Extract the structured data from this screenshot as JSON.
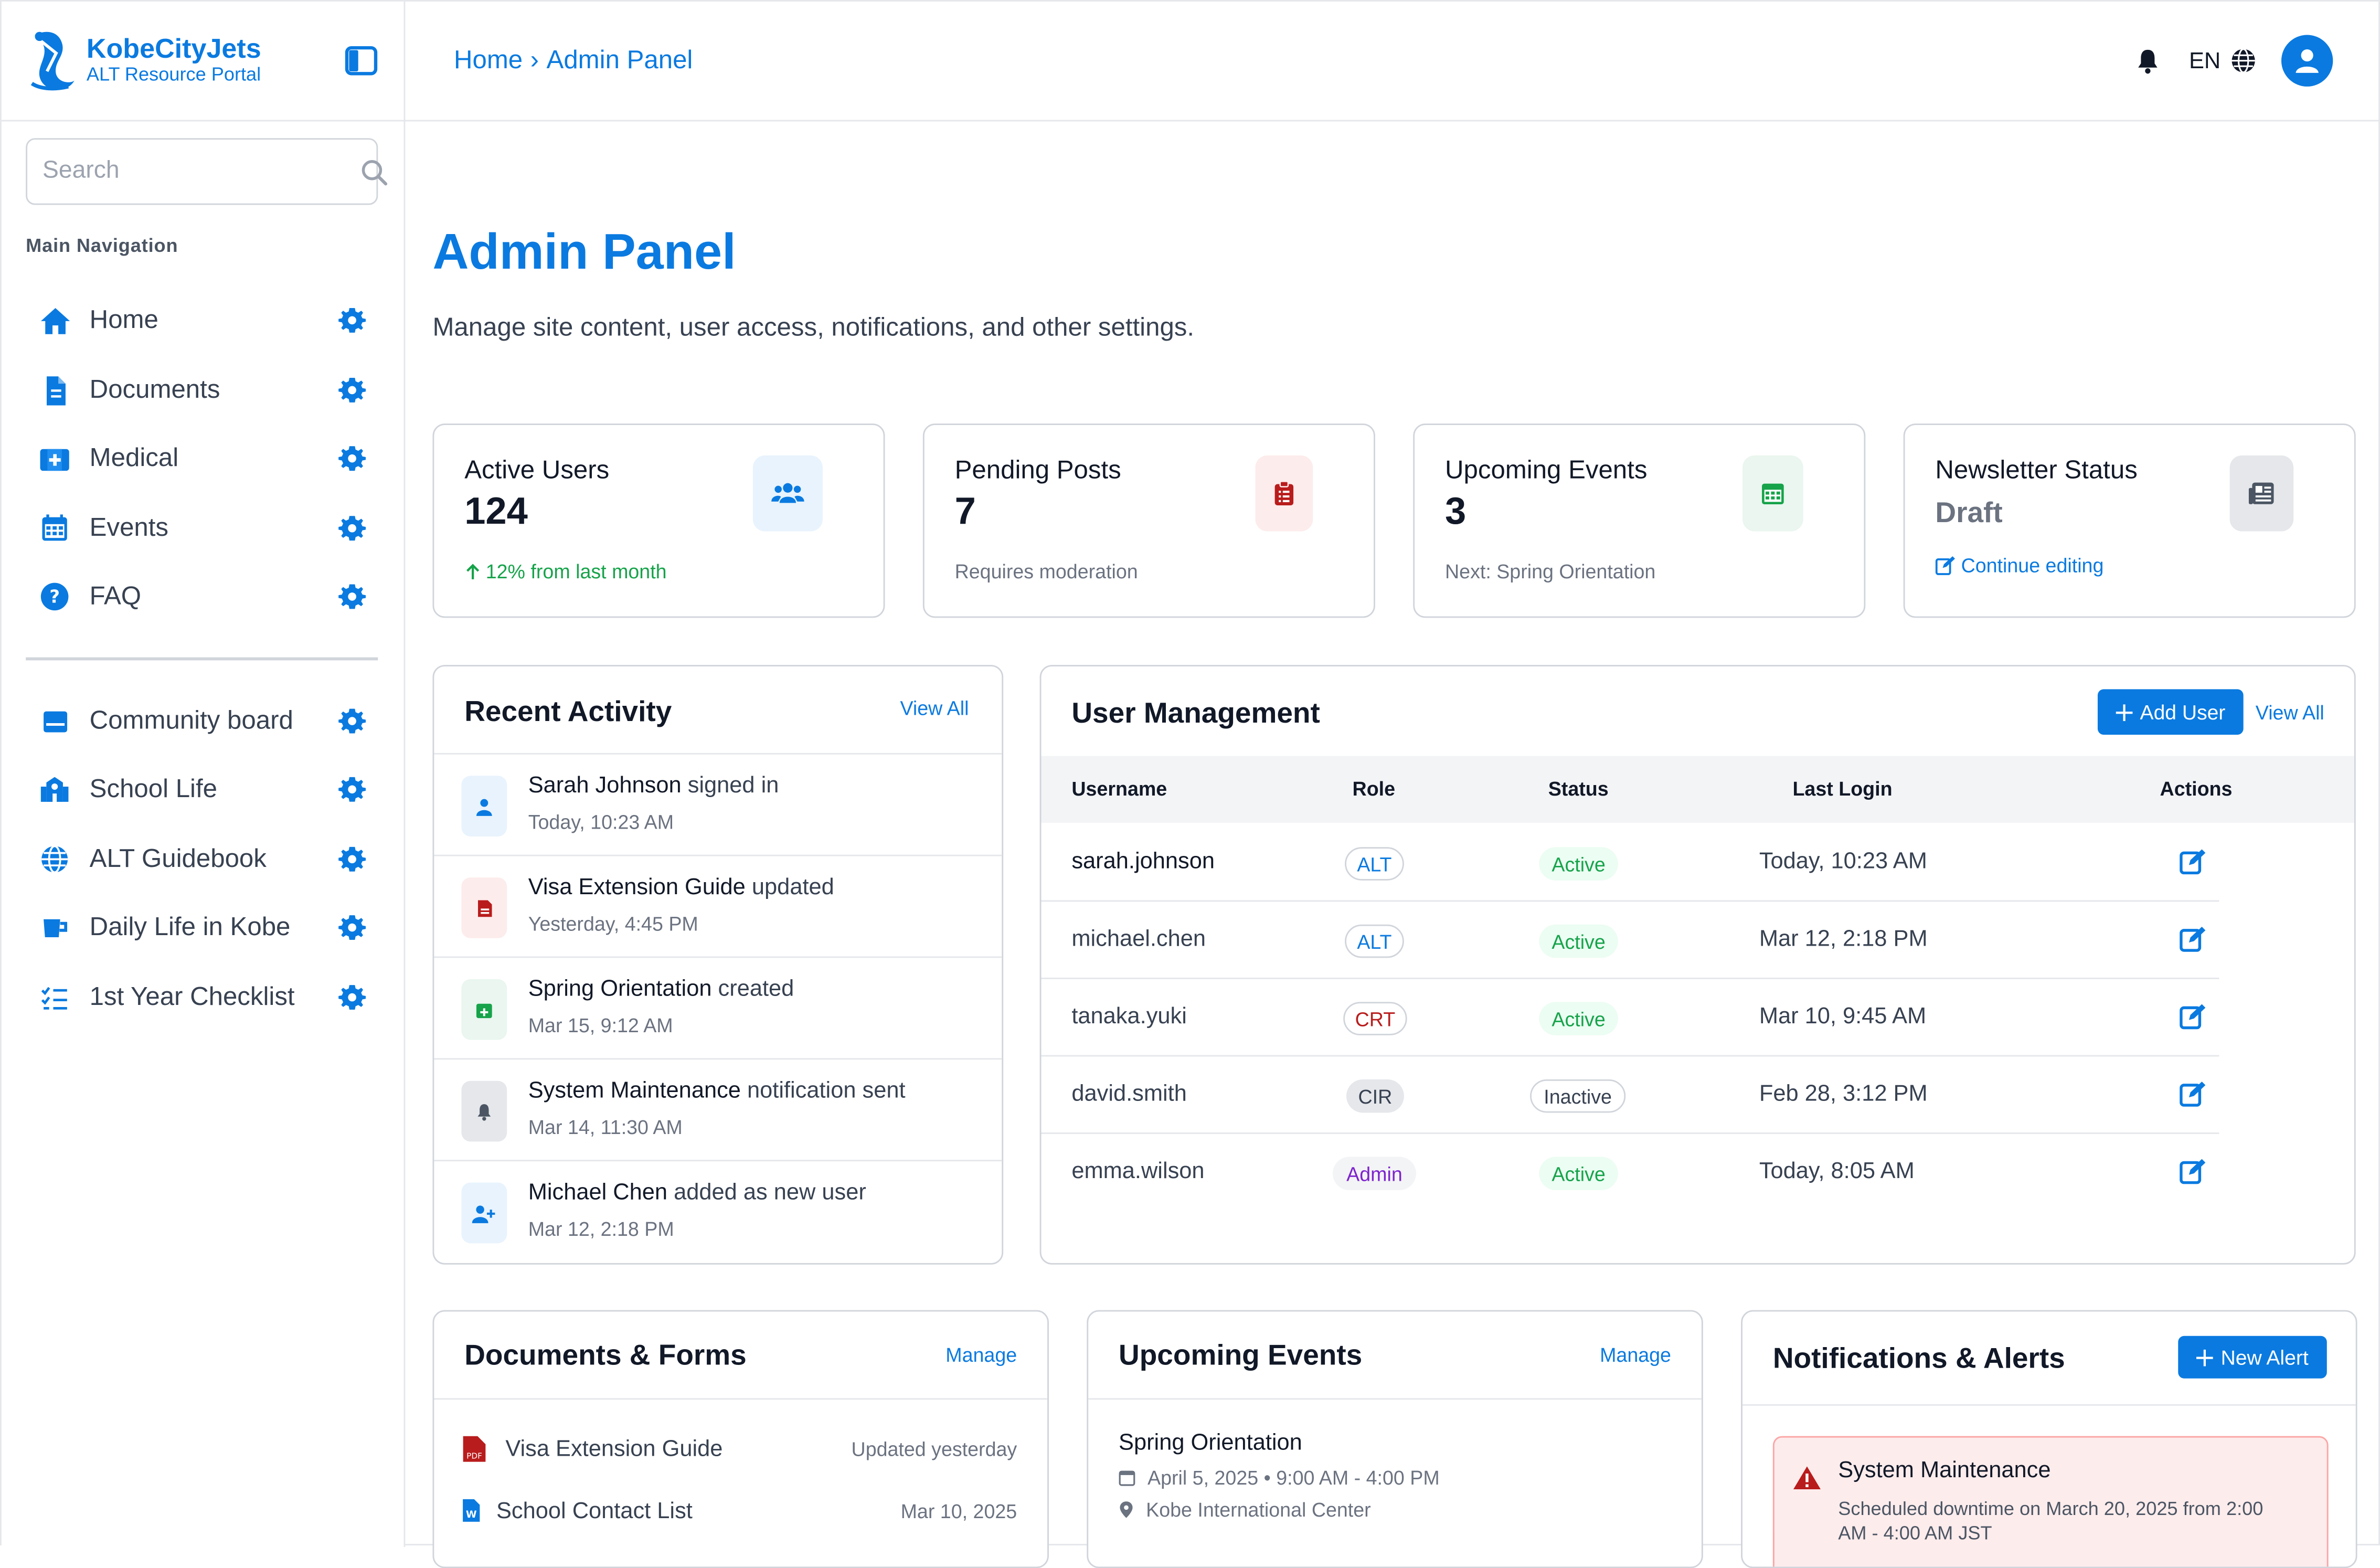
{
  "brand": {
    "name": "KobeCityJets",
    "subtitle": "ALT Resource Portal"
  },
  "search": {
    "placeholder": "Search"
  },
  "nav": {
    "heading": "Main Navigation",
    "main_items": [
      {
        "label": "Home",
        "icon": "home-icon"
      },
      {
        "label": "Documents",
        "icon": "document-icon"
      },
      {
        "label": "Medical",
        "icon": "medical-icon"
      },
      {
        "label": "Events",
        "icon": "calendar-icon"
      },
      {
        "label": "FAQ",
        "icon": "question-icon"
      }
    ],
    "secondary_items": [
      {
        "label": "Community board",
        "icon": "board-icon"
      },
      {
        "label": "School Life",
        "icon": "school-icon"
      },
      {
        "label": "ALT Guidebook",
        "icon": "globe-icon"
      },
      {
        "label": "Daily Life in Kobe",
        "icon": "mug-icon"
      },
      {
        "label": "1st Year Checklist",
        "icon": "checklist-icon"
      }
    ]
  },
  "header": {
    "breadcrumb": [
      "Home",
      "Admin Panel"
    ],
    "breadcrumb_sep": "›",
    "language": "EN"
  },
  "page": {
    "title": "Admin Panel",
    "description": "Manage site content, user access, notifications, and other settings."
  },
  "stats": [
    {
      "label": "Active Users",
      "value": "124",
      "sub": "12% from last month",
      "icon": "users-icon"
    },
    {
      "label": "Pending Posts",
      "value": "7",
      "sub": "Requires moderation",
      "icon": "clipboard-icon"
    },
    {
      "label": "Upcoming Events",
      "value": "3",
      "sub": "Next: Spring Orientation",
      "icon": "calendar-icon"
    },
    {
      "label": "Newsletter Status",
      "value": "Draft",
      "sub": "Continue editing",
      "icon": "newspaper-icon"
    }
  ],
  "recent_activity": {
    "title": "Recent Activity",
    "link": "View All",
    "items": [
      {
        "subject": "Sarah Johnson",
        "action": "signed in",
        "time": "Today, 10:23 AM"
      },
      {
        "subject": "Visa Extension Guide",
        "action": "updated",
        "time": "Yesterday, 4:45 PM"
      },
      {
        "subject": "Spring Orientation",
        "action": "created",
        "time": "Mar 15, 9:12 AM"
      },
      {
        "subject": "System Maintenance",
        "action": "notification sent",
        "time": "Mar 14, 11:30 AM"
      },
      {
        "subject": "Michael Chen",
        "action": "added as new user",
        "time": "Mar 12, 2:18 PM"
      }
    ]
  },
  "user_management": {
    "title": "User Management",
    "add_button": "Add User",
    "link": "View All",
    "columns": [
      "Username",
      "Role",
      "Status",
      "Last Login",
      "Actions"
    ],
    "rows": [
      {
        "username": "sarah.johnson",
        "role": "ALT",
        "status": "Active",
        "last_login": "Today, 10:23 AM"
      },
      {
        "username": "michael.chen",
        "role": "ALT",
        "status": "Active",
        "last_login": "Mar 12, 2:18 PM"
      },
      {
        "username": "tanaka.yuki",
        "role": "CRT",
        "status": "Active",
        "last_login": "Mar 10, 9:45 AM"
      },
      {
        "username": "david.smith",
        "role": "CIR",
        "status": "Inactive",
        "last_login": "Feb 28, 3:12 PM"
      },
      {
        "username": "emma.wilson",
        "role": "Admin",
        "status": "Active",
        "last_login": "Today, 8:05 AM"
      }
    ]
  },
  "documents": {
    "title": "Documents & Forms",
    "link": "Manage",
    "items": [
      {
        "name": "Visa Extension Guide",
        "date": "Updated yesterday",
        "icon": "pdf-icon"
      },
      {
        "name": "School Contact List",
        "date": "Mar 10, 2025",
        "icon": "word-icon"
      }
    ]
  },
  "events": {
    "title": "Upcoming Events",
    "link": "Manage",
    "items": [
      {
        "name": "Spring Orientation",
        "datetime": "April 5, 2025 • 9:00 AM - 4:00 PM",
        "location": "Kobe International Center"
      }
    ]
  },
  "notifications": {
    "title": "Notifications & Alerts",
    "button": "New Alert",
    "items": [
      {
        "title": "System Maintenance",
        "body": "Scheduled downtime on March 20, 2025 from 2:00 AM - 4:00 AM JST"
      }
    ]
  },
  "colors": {
    "accent": "#0a7ae0",
    "success": "#16a34a",
    "danger": "#b91c1c",
    "admin": "#7e22ce"
  }
}
